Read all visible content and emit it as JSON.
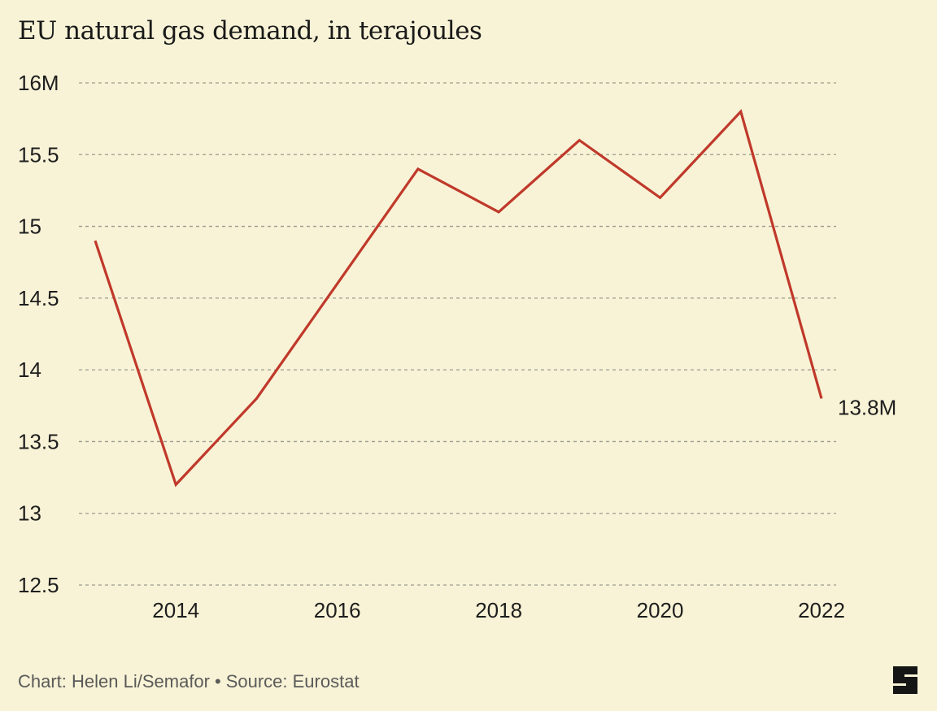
{
  "chart_data": {
    "type": "line",
    "title": "EU natural gas demand, in terajoules",
    "x": [
      2013,
      2014,
      2015,
      2016,
      2017,
      2018,
      2019,
      2020,
      2021,
      2022
    ],
    "series": [
      {
        "values": [
          14.9,
          13.2,
          13.8,
          14.6,
          15.4,
          15.1,
          15.6,
          15.2,
          15.8,
          13.8
        ]
      }
    ],
    "xlim": [
      2013,
      2022
    ],
    "ylim": [
      12.5,
      16
    ],
    "x_ticks": [
      2014,
      2016,
      2018,
      2020,
      2022
    ],
    "y_ticks": [
      12.5,
      13,
      13.5,
      14,
      14.5,
      15,
      15.5,
      16
    ],
    "y_tick_labels": [
      "12.5",
      "13",
      "13.5",
      "14",
      "14.5",
      "15",
      "15.5",
      "16M"
    ],
    "end_label": "13.8M",
    "grid": "horizontal dashed",
    "line_color": "#c0392b",
    "grid_color": "#9a9a90",
    "background_color": "#f8f3d6"
  },
  "footer": {
    "credit": "Chart: Helen Li/Semafor",
    "separator": "•",
    "source": "Source: Eurostat"
  },
  "logo": {
    "icon": "semafor-s-logo"
  }
}
